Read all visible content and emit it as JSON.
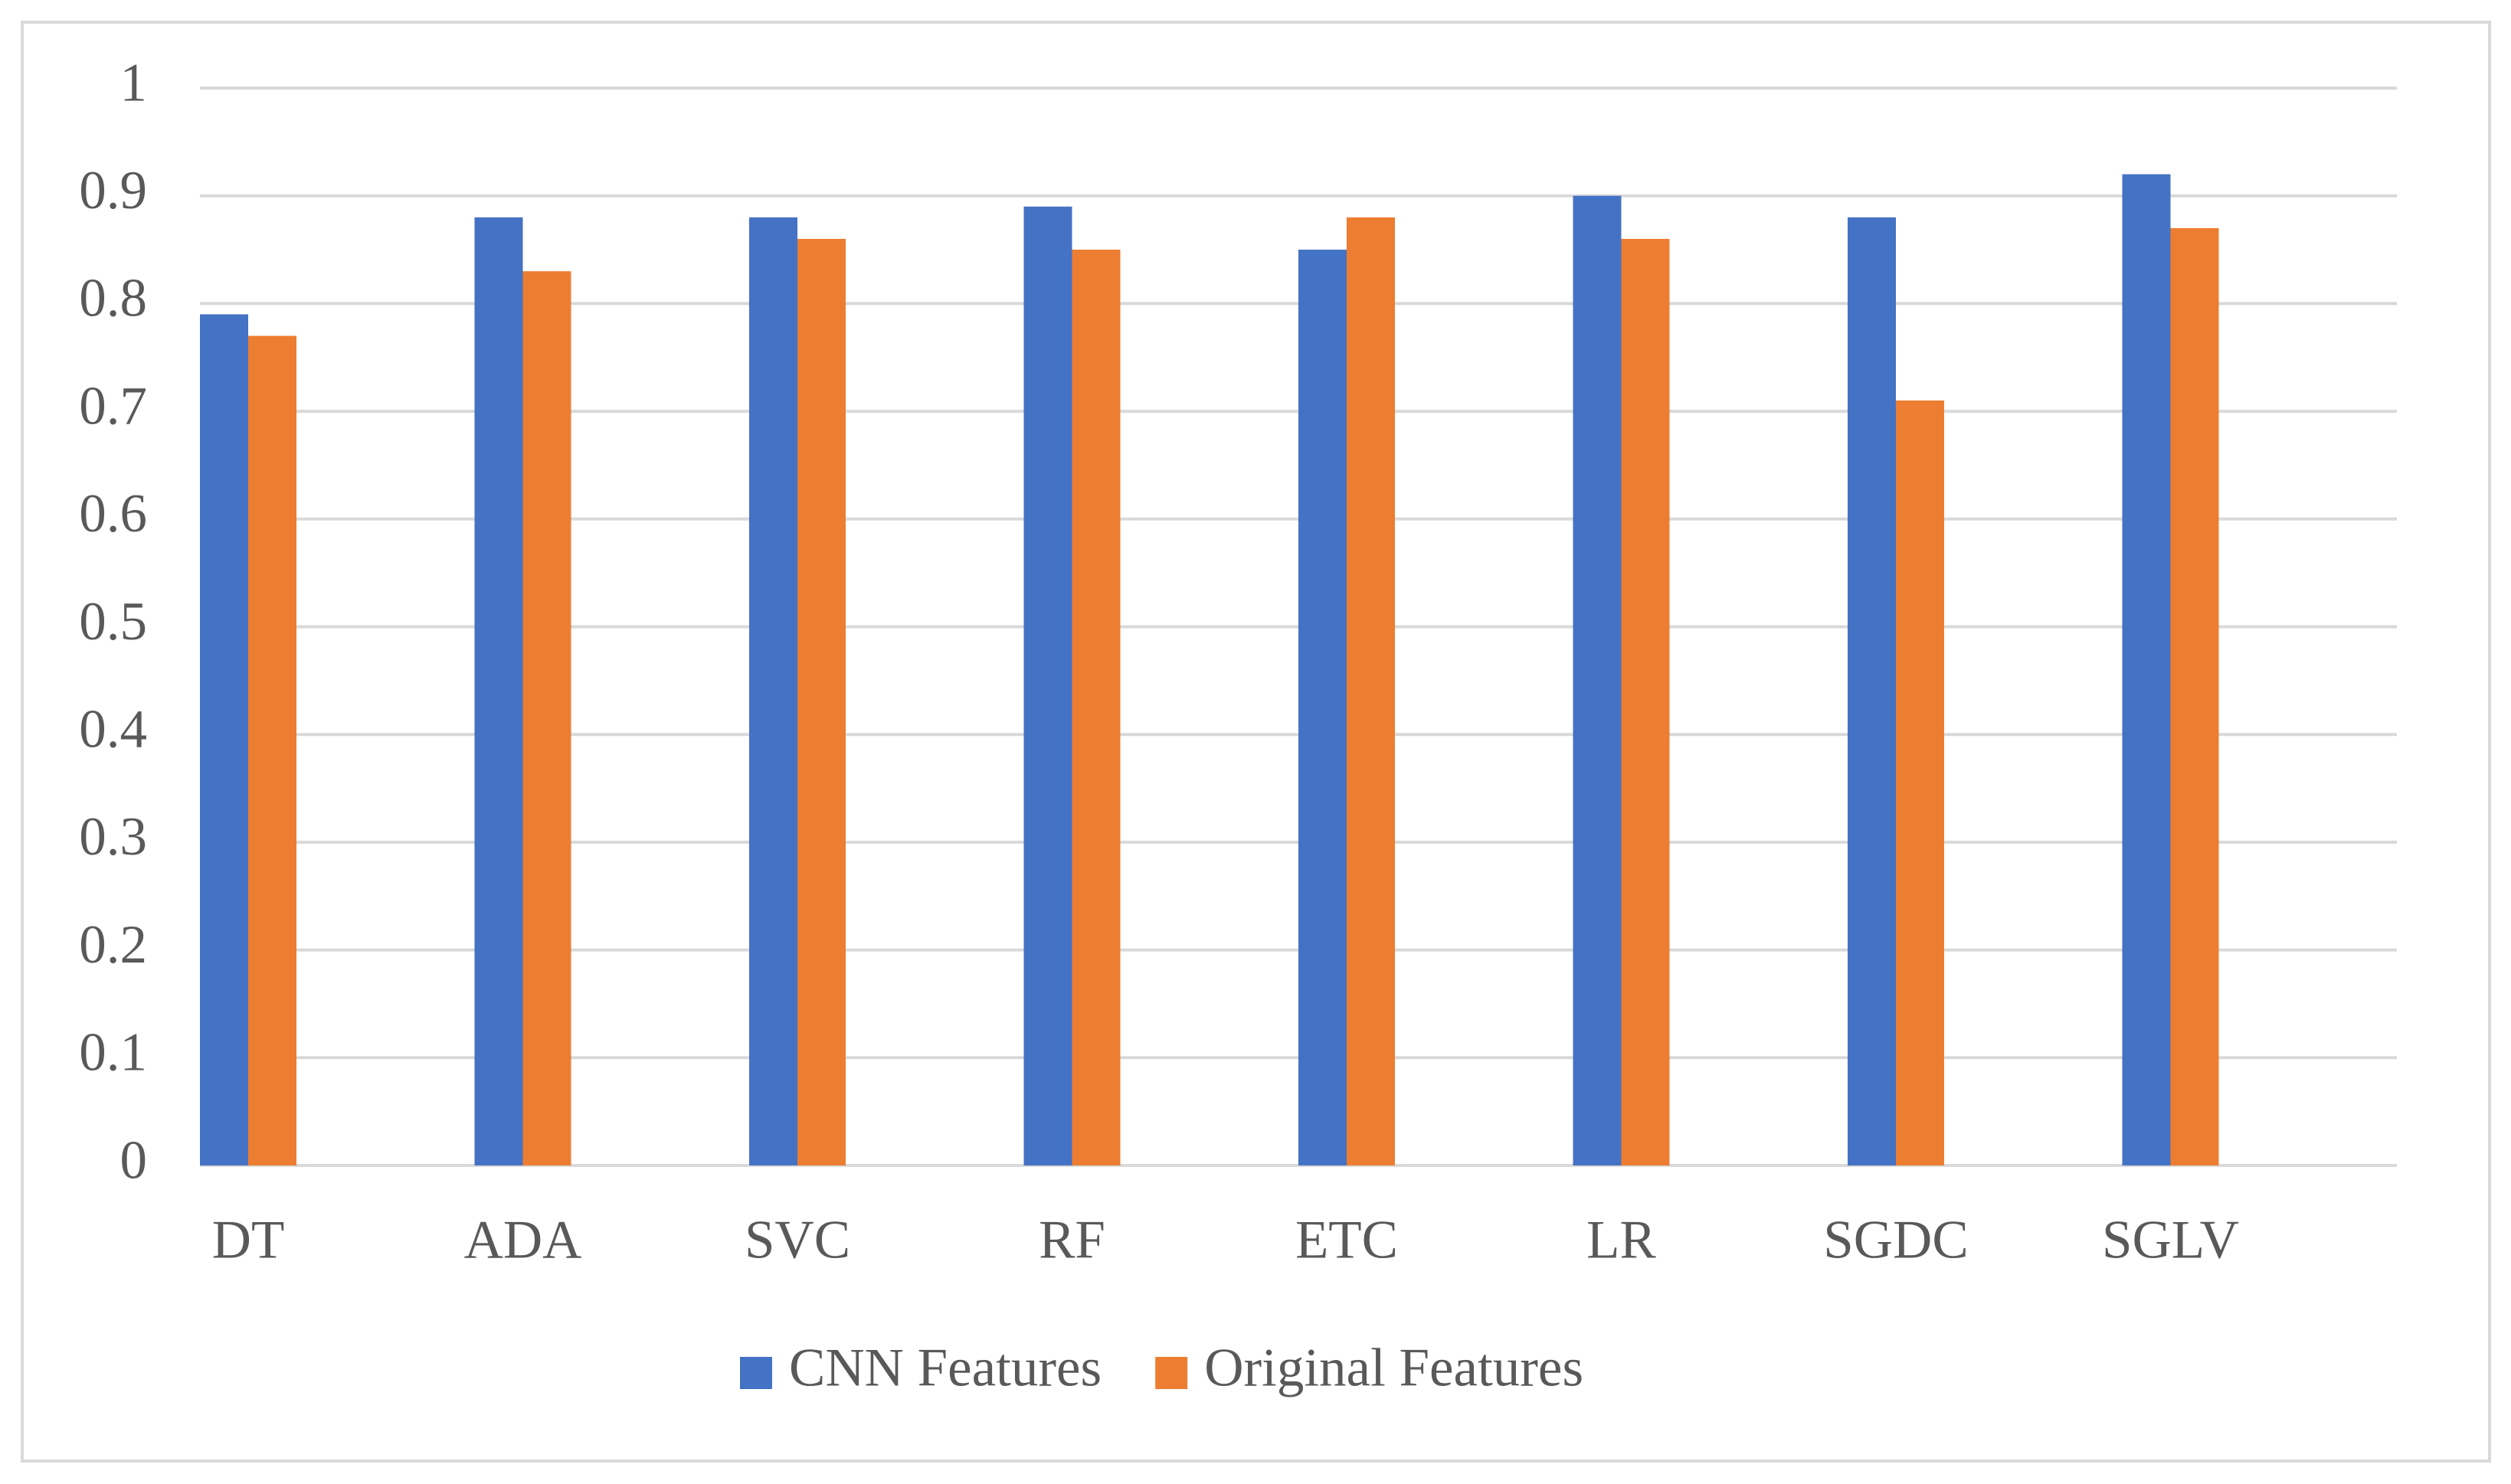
{
  "chart_data": {
    "type": "bar",
    "categories": [
      "DT",
      "ADA",
      "SVC",
      "RF",
      "ETC",
      "LR",
      "SGDC",
      "SGLV"
    ],
    "series": [
      {
        "name": "CNN Features",
        "color": "#4472c4",
        "values": [
          0.79,
          0.88,
          0.88,
          0.89,
          0.85,
          0.9,
          0.88,
          0.92
        ]
      },
      {
        "name": "Original Features",
        "color": "#ed7d31",
        "values": [
          0.77,
          0.83,
          0.86,
          0.85,
          0.88,
          0.86,
          0.71,
          0.87
        ]
      }
    ],
    "ylim": [
      0,
      1
    ],
    "yticks": [
      0,
      0.1,
      0.2,
      0.3,
      0.4,
      0.5,
      0.6,
      0.7,
      0.8,
      0.9,
      1
    ],
    "grid": true,
    "legend": "bottom"
  }
}
